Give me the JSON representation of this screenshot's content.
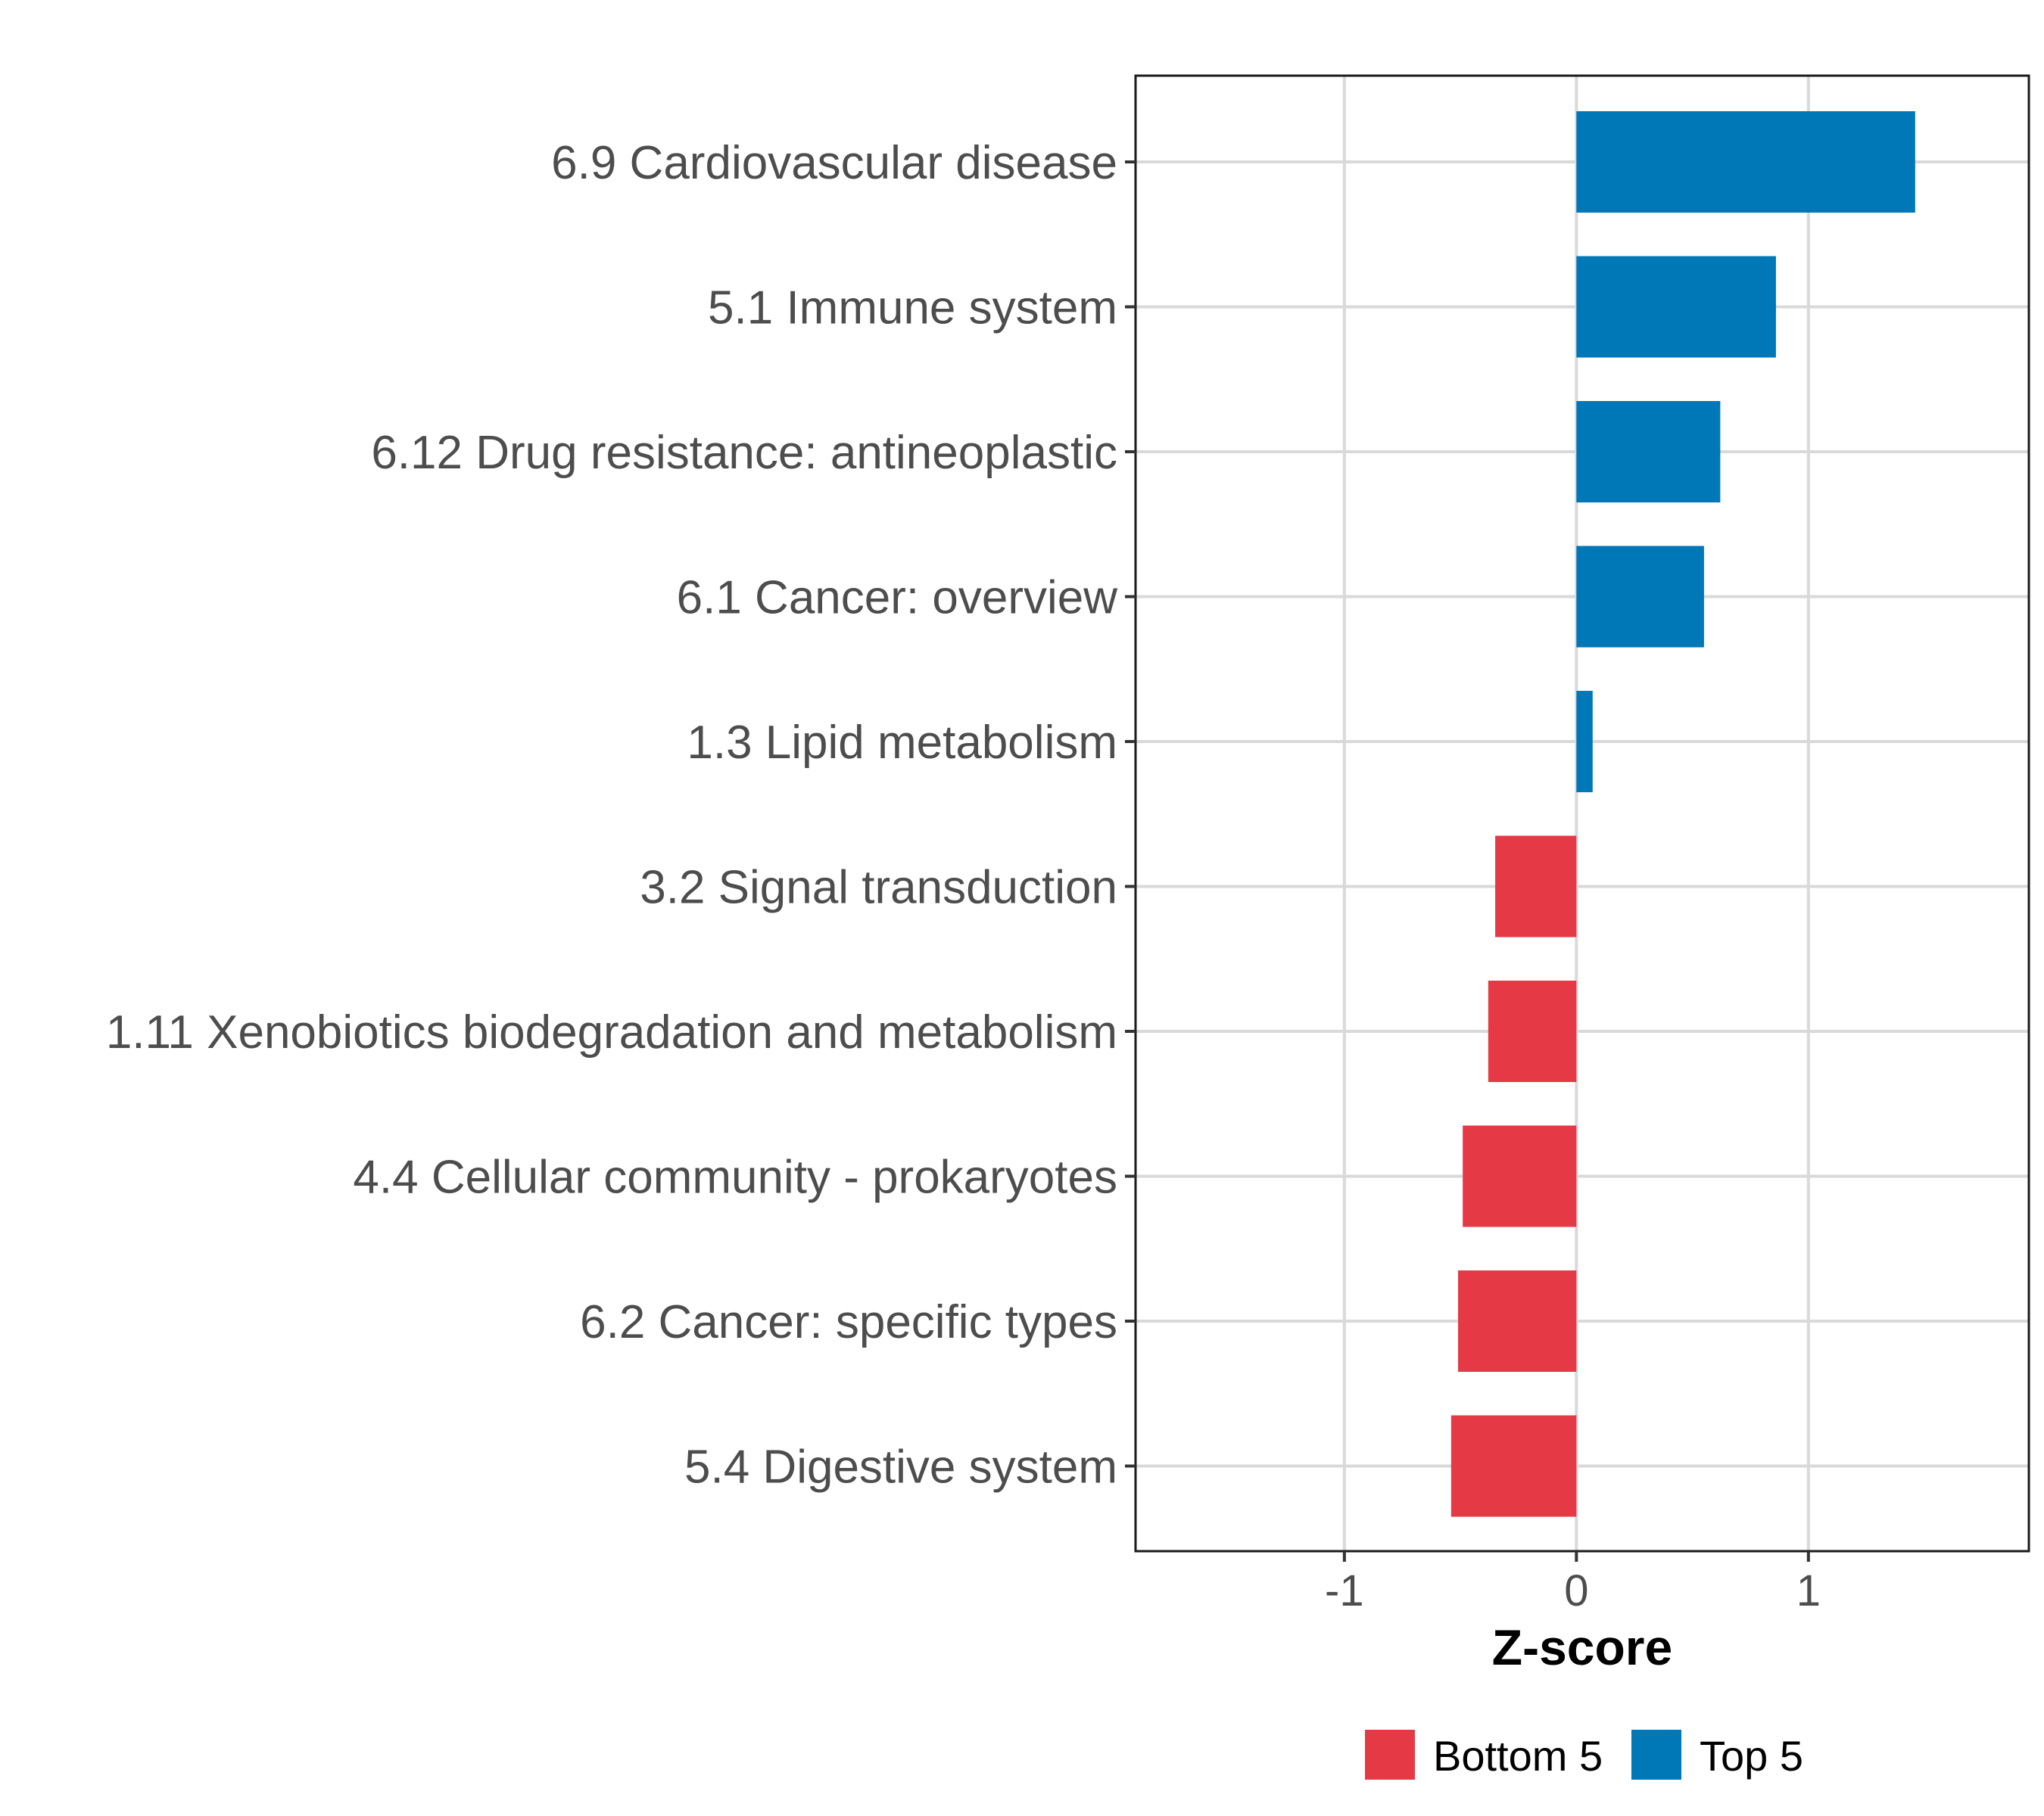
{
  "chart_data": {
    "type": "bar",
    "orientation": "horizontal",
    "title": "",
    "xlabel": "Z-score",
    "ylabel": "",
    "xlim": [
      -1.9,
      1.95
    ],
    "xticks": [
      -1,
      0,
      1
    ],
    "xtick_labels": [
      "-1",
      "0",
      "1"
    ],
    "grid": true,
    "categories": [
      "6.9 Cardiovascular disease",
      "5.1 Immune system",
      "6.12 Drug resistance: antineoplastic",
      "6.1 Cancer: overview",
      "1.3 Lipid metabolism",
      "3.2 Signal transduction",
      "1.11 Xenobiotics biodegradation and metabolism",
      "4.4 Cellular community - prokaryotes",
      "6.2 Cancer: specific types",
      "5.4 Digestive system"
    ],
    "values": [
      1.46,
      0.86,
      0.62,
      0.55,
      0.07,
      -0.35,
      -0.38,
      -0.49,
      -0.51,
      -0.54
    ],
    "groups": [
      "Top 5",
      "Top 5",
      "Top 5",
      "Top 5",
      "Top 5",
      "Bottom 5",
      "Bottom 5",
      "Bottom 5",
      "Bottom 5",
      "Bottom 5"
    ],
    "legend": {
      "position": "bottom",
      "entries": [
        {
          "label": "Bottom 5",
          "color": "#e63946"
        },
        {
          "label": "Top 5",
          "color": "#0077b6"
        }
      ]
    }
  }
}
